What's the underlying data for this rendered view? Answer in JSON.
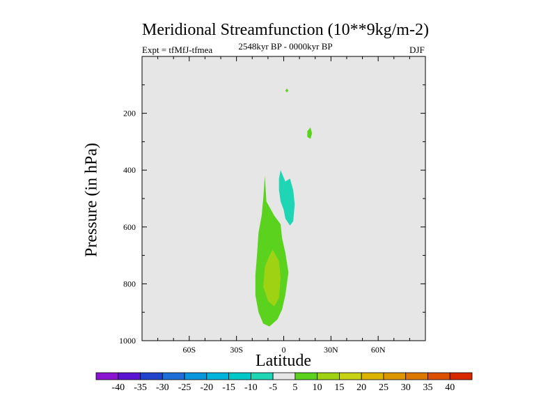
{
  "chart_data": {
    "type": "contour",
    "title": "Meridional Streamfunction (10**9kg/m-2)",
    "subtitle_left": "Expt = tfMfJ-tfmea",
    "subtitle_center": "2548kyr BP - 0000kyr BP",
    "subtitle_right": "DJF",
    "xlabel": "Latitude",
    "ylabel": "Pressure (in hPa)",
    "xlim": [
      -90,
      90
    ],
    "ylim": [
      1000,
      0
    ],
    "xticks": [
      {
        "value": -60,
        "label": "60S"
      },
      {
        "value": -30,
        "label": "30S"
      },
      {
        "value": 0,
        "label": "0"
      },
      {
        "value": 30,
        "label": "30N"
      },
      {
        "value": 60,
        "label": "60N"
      }
    ],
    "yticks": [
      {
        "value": 200,
        "label": "200"
      },
      {
        "value": 400,
        "label": "400"
      },
      {
        "value": 600,
        "label": "600"
      },
      {
        "value": 800,
        "label": "800"
      },
      {
        "value": 1000,
        "label": "1000"
      }
    ],
    "background_color": "#e6e6e6",
    "colorbar": {
      "labels": [
        "-40",
        "-35",
        "-30",
        "-25",
        "-20",
        "-15",
        "-10",
        "-5",
        "5",
        "10",
        "15",
        "20",
        "25",
        "30",
        "35",
        "40"
      ],
      "colors": [
        "#8a14d2",
        "#5a14d2",
        "#2244cc",
        "#1e6ed8",
        "#0a96dc",
        "#00b4dc",
        "#00c8c8",
        "#1ed6b4",
        "#e6e6e6",
        "#5ad21e",
        "#a0d214",
        "#c8d214",
        "#dcb400",
        "#dc9600",
        "#dc7800",
        "#dc5000",
        "#d82800"
      ]
    },
    "regions": [
      {
        "name": "positive 5-10 main",
        "level": "5 to 10",
        "color": "#5ad21e",
        "points": [
          [
            -12,
            420
          ],
          [
            -11,
            510
          ],
          [
            -6,
            560
          ],
          [
            -2,
            590
          ],
          [
            -1,
            640
          ],
          [
            1,
            690
          ],
          [
            3,
            760
          ],
          [
            1,
            840
          ],
          [
            -1,
            890
          ],
          [
            -4,
            925
          ],
          [
            -9,
            950
          ],
          [
            -13,
            940
          ],
          [
            -16,
            900
          ],
          [
            -18,
            840
          ],
          [
            -18,
            770
          ],
          [
            -17,
            700
          ],
          [
            -16,
            620
          ],
          [
            -14,
            560
          ],
          [
            -13,
            500
          ]
        ]
      },
      {
        "name": "positive 10-15 core",
        "level": "10 to 15",
        "color": "#a0d214",
        "points": [
          [
            -7,
            680
          ],
          [
            -3,
            720
          ],
          [
            -2,
            780
          ],
          [
            -3,
            850
          ],
          [
            -6,
            880
          ],
          [
            -10,
            860
          ],
          [
            -13,
            810
          ],
          [
            -12,
            740
          ],
          [
            -9,
            700
          ]
        ]
      },
      {
        "name": "negative -10 to -5",
        "level": "-10 to -5",
        "color": "#1ed6b4",
        "points": [
          [
            -2,
            400
          ],
          [
            1,
            440
          ],
          [
            4,
            430
          ],
          [
            6,
            470
          ],
          [
            7,
            520
          ],
          [
            6,
            580
          ],
          [
            4,
            595
          ],
          [
            1,
            570
          ],
          [
            0,
            540
          ],
          [
            -2,
            510
          ],
          [
            -3,
            470
          ],
          [
            -3,
            430
          ]
        ]
      },
      {
        "name": "positive small upper",
        "level": "5 to 10",
        "color": "#5ad21e",
        "points": [
          [
            15,
            263
          ],
          [
            17,
            250
          ],
          [
            18,
            270
          ],
          [
            17,
            290
          ],
          [
            15,
            283
          ]
        ]
      },
      {
        "name": "positive tiny top",
        "level": "5 to 10",
        "color": "#5ad21e",
        "points": [
          [
            1,
            120
          ],
          [
            2,
            113
          ],
          [
            3,
            120
          ],
          [
            2,
            127
          ]
        ]
      }
    ]
  }
}
